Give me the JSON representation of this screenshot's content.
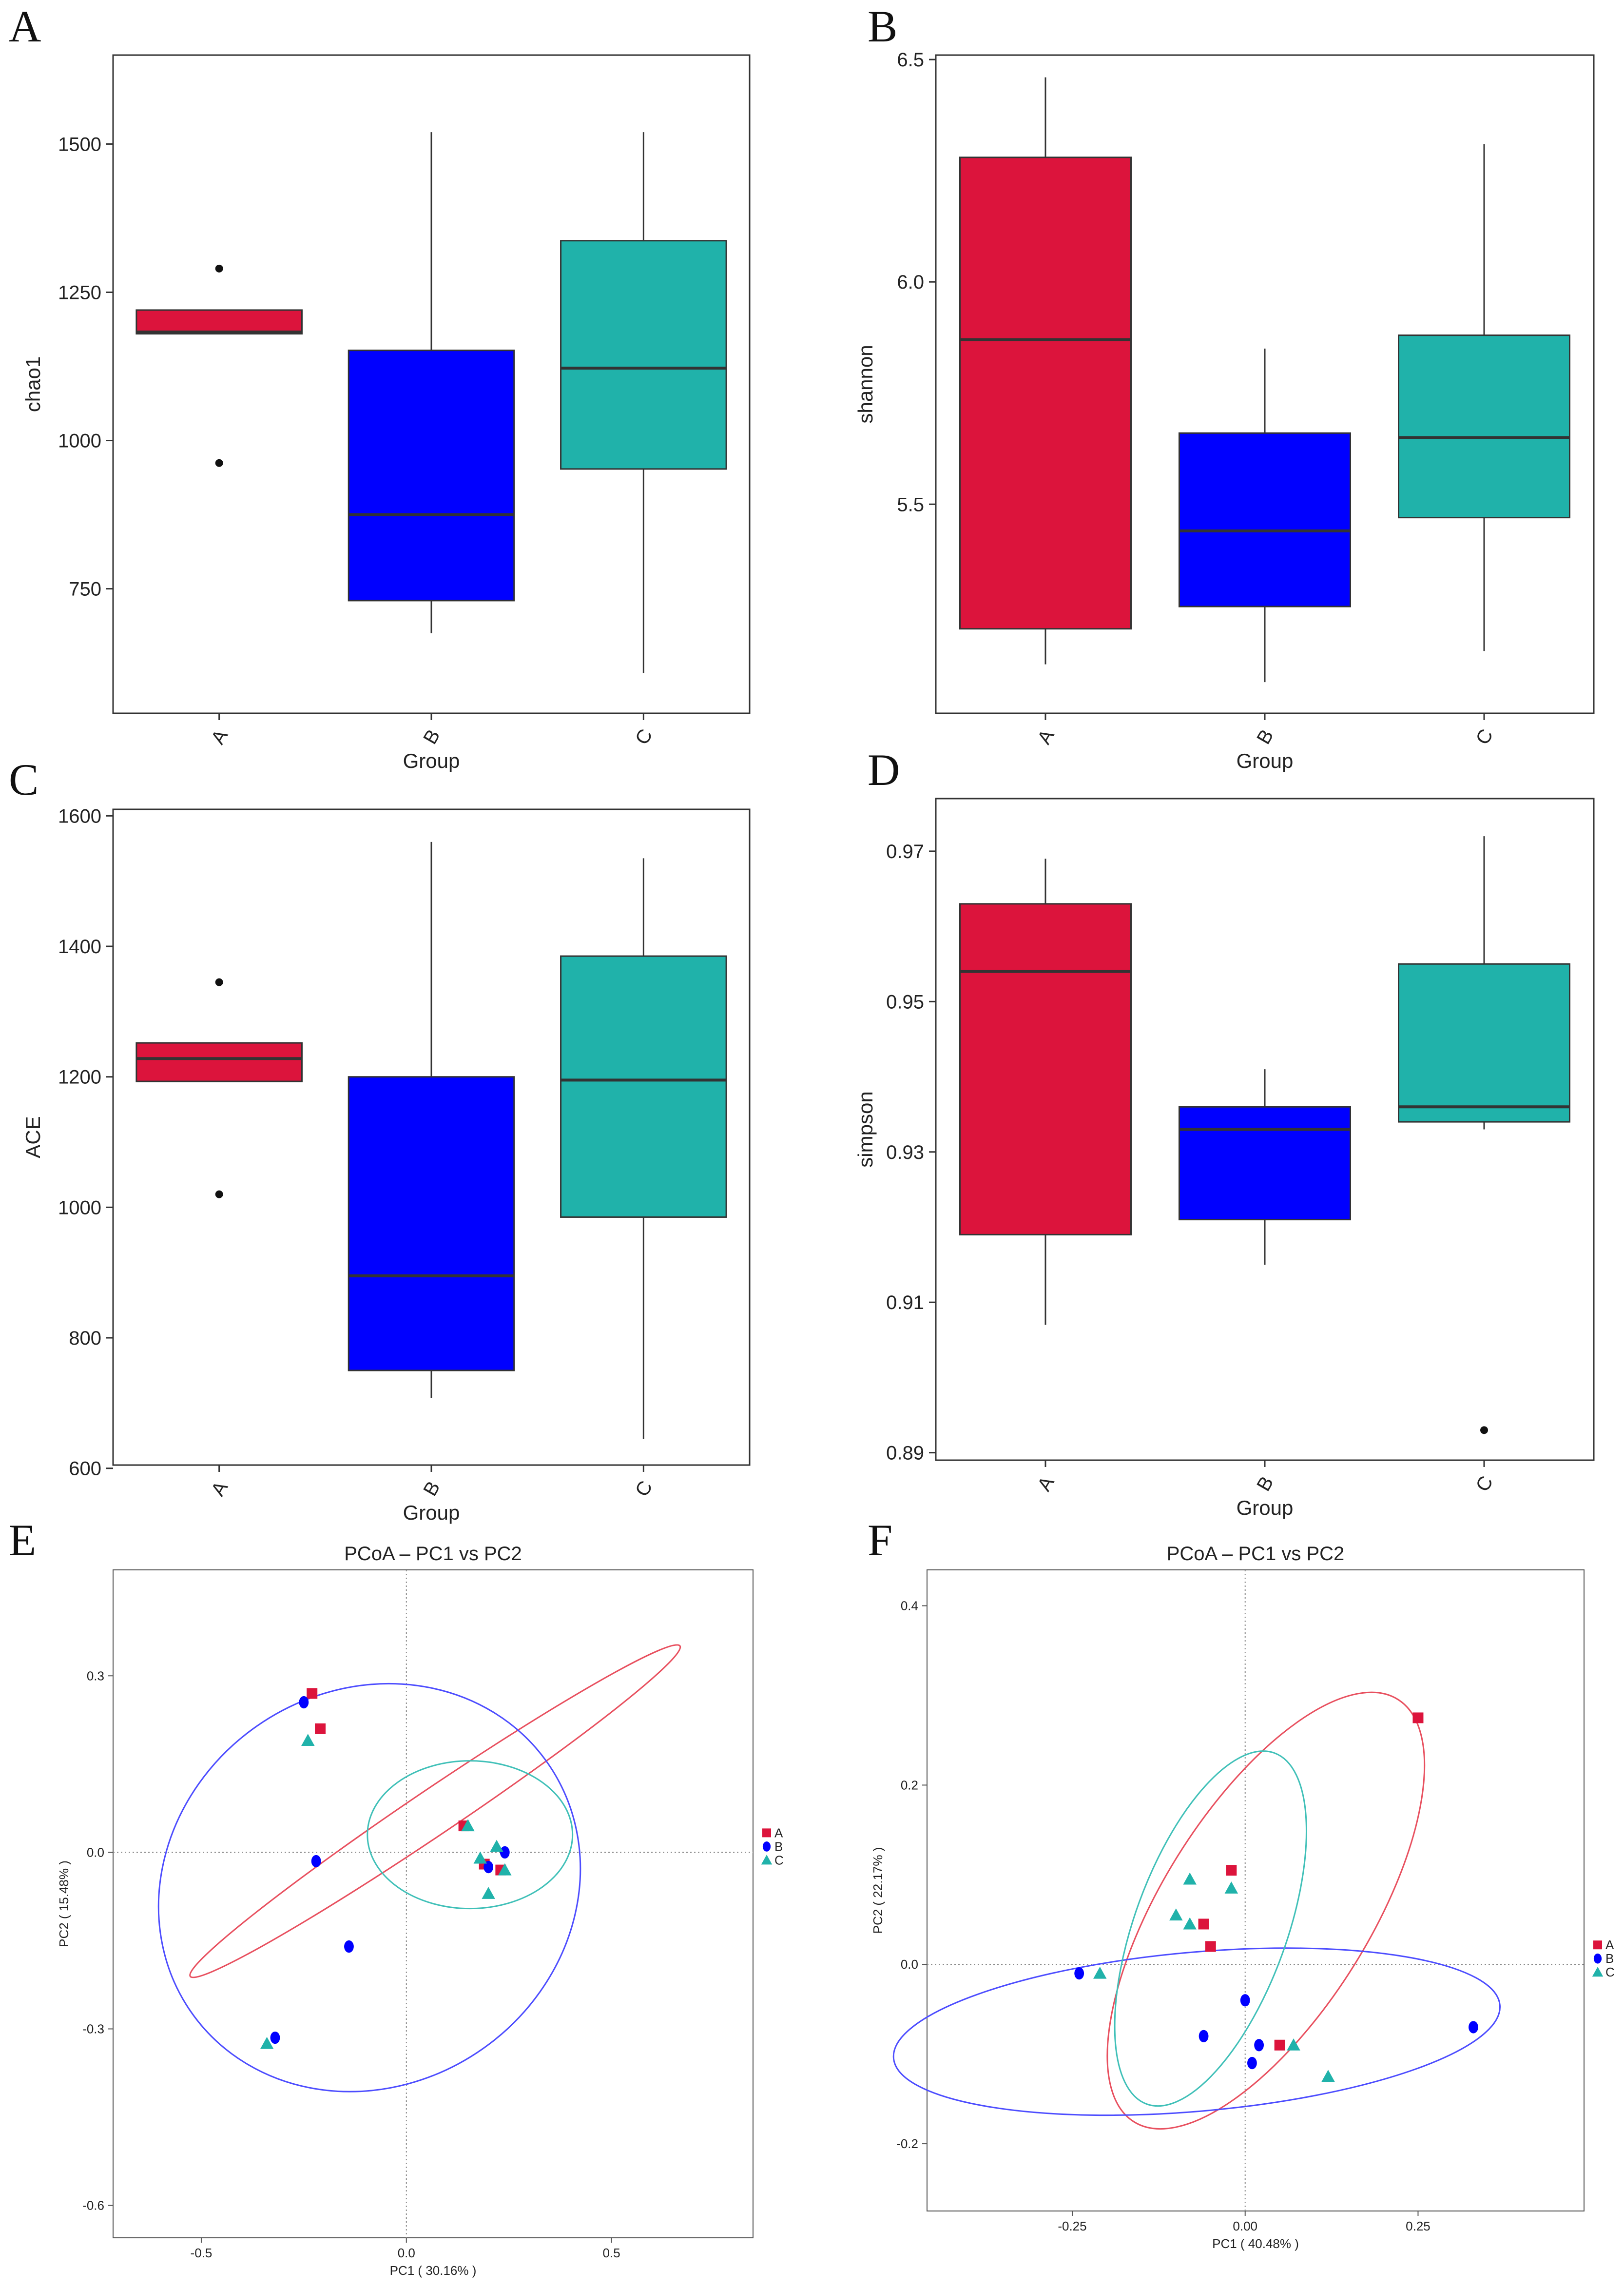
{
  "colors": {
    "A": "#dc143c",
    "B": "#0000ff",
    "C": "#20b2aa",
    "ellipse_A": "#e8505f",
    "ellipse_B": "#4d4dff",
    "ellipse_C": "#40c0b8",
    "median": "#333333"
  },
  "chart_data": [
    {
      "panel": "A",
      "type": "box",
      "xlabel": "Group",
      "ylabel": "chao1",
      "ylim": [
        540,
        1650
      ],
      "yticks": [
        750,
        1000,
        1250,
        1500
      ],
      "ytick_labels": [
        "750",
        "1000",
        "1250",
        "1500"
      ],
      "categories": [
        "A",
        "B",
        "C"
      ],
      "boxes": [
        {
          "group": "A",
          "q1": 1180,
          "median": 1183,
          "q3": 1220,
          "whisker_low": 1180,
          "whisker_high": 1220,
          "outliers": [
            1290,
            962
          ]
        },
        {
          "group": "B",
          "q1": 730,
          "median": 875,
          "q3": 1152,
          "whisker_low": 675,
          "whisker_high": 1520,
          "outliers": []
        },
        {
          "group": "C",
          "q1": 952,
          "median": 1122,
          "q3": 1337,
          "whisker_low": 608,
          "whisker_high": 1520,
          "outliers": []
        }
      ]
    },
    {
      "panel": "B",
      "type": "box",
      "xlabel": "Group",
      "ylabel": "shannon",
      "ylim": [
        5.03,
        6.51
      ],
      "yticks": [
        5.5,
        6.0,
        6.5
      ],
      "ytick_labels": [
        "5.5",
        "6.0",
        "6.5"
      ],
      "categories": [
        "A",
        "B",
        "C"
      ],
      "boxes": [
        {
          "group": "A",
          "q1": 5.22,
          "median": 5.87,
          "q3": 6.28,
          "whisker_low": 5.14,
          "whisker_high": 6.46,
          "outliers": []
        },
        {
          "group": "B",
          "q1": 5.27,
          "median": 5.44,
          "q3": 5.66,
          "whisker_low": 5.1,
          "whisker_high": 5.85,
          "outliers": []
        },
        {
          "group": "C",
          "q1": 5.47,
          "median": 5.65,
          "q3": 5.88,
          "whisker_low": 5.17,
          "whisker_high": 6.31,
          "outliers": []
        }
      ]
    },
    {
      "panel": "C",
      "type": "box",
      "xlabel": "Group",
      "ylabel": "ACE",
      "ylim": [
        605,
        1610
      ],
      "yticks": [
        600,
        800,
        1000,
        1200,
        1400,
        1600
      ],
      "ytick_labels": [
        "600",
        "800",
        "1000",
        "1200",
        "1400",
        "1600"
      ],
      "categories": [
        "A",
        "B",
        "C"
      ],
      "boxes": [
        {
          "group": "A",
          "q1": 1193,
          "median": 1228,
          "q3": 1252,
          "whisker_low": 1193,
          "whisker_high": 1252,
          "outliers": [
            1345,
            1020
          ]
        },
        {
          "group": "B",
          "q1": 750,
          "median": 895,
          "q3": 1200,
          "whisker_low": 708,
          "whisker_high": 1560,
          "outliers": []
        },
        {
          "group": "C",
          "q1": 985,
          "median": 1195,
          "q3": 1385,
          "whisker_low": 645,
          "whisker_high": 1535,
          "outliers": []
        }
      ]
    },
    {
      "panel": "D",
      "type": "box",
      "xlabel": "Group",
      "ylabel": "simpson",
      "ylim": [
        0.889,
        0.977
      ],
      "yticks": [
        0.89,
        0.91,
        0.93,
        0.95,
        0.97
      ],
      "ytick_labels": [
        "0.89",
        "0.91",
        "0.93",
        "0.95",
        "0.97"
      ],
      "categories": [
        "A",
        "B",
        "C"
      ],
      "boxes": [
        {
          "group": "A",
          "q1": 0.919,
          "median": 0.954,
          "q3": 0.963,
          "whisker_low": 0.907,
          "whisker_high": 0.969,
          "outliers": []
        },
        {
          "group": "B",
          "q1": 0.921,
          "median": 0.933,
          "q3": 0.936,
          "whisker_low": 0.915,
          "whisker_high": 0.941,
          "outliers": []
        },
        {
          "group": "C",
          "q1": 0.934,
          "median": 0.936,
          "q3": 0.955,
          "whisker_low": 0.933,
          "whisker_high": 0.972,
          "outliers": [
            0.893
          ]
        }
      ]
    },
    {
      "panel": "E",
      "type": "scatter",
      "title": "PCoA – PC1 vs PC2",
      "xlabel": "PC1 ( 30.16% )",
      "ylabel": "PC2 ( 15.48% )",
      "xlim": [
        -0.715,
        0.845
      ],
      "ylim": [
        -0.655,
        0.48
      ],
      "xticks": [
        -0.5,
        0.0,
        0.5
      ],
      "xtick_labels": [
        "-0.5",
        "0.0",
        "0.5"
      ],
      "yticks": [
        -0.6,
        -0.3,
        0.0,
        0.3
      ],
      "ytick_labels": [
        "-0.6",
        "-0.3",
        "0.0",
        "0.3"
      ],
      "legend": [
        "A",
        "B",
        "C"
      ],
      "ellipses": [
        {
          "group": "A",
          "cx": 0.07,
          "cy": 0.07,
          "rx": 0.72,
          "ry": 0.055,
          "angle_deg": -34
        },
        {
          "group": "B",
          "cx": -0.09,
          "cy": -0.06,
          "rx": 0.53,
          "ry": 0.48,
          "angle_deg": -35
        },
        {
          "group": "C",
          "cx": 0.155,
          "cy": 0.03,
          "rx": 0.25,
          "ry": 0.18,
          "angle_deg": 0
        }
      ],
      "points": {
        "A": [
          [
            -0.23,
            0.27
          ],
          [
            -0.21,
            0.21
          ],
          [
            0.14,
            0.045
          ],
          [
            0.19,
            -0.02
          ],
          [
            0.23,
            -0.03
          ]
        ],
        "B": [
          [
            -0.25,
            0.255
          ],
          [
            -0.22,
            -0.015
          ],
          [
            -0.14,
            -0.16
          ],
          [
            -0.32,
            -0.315
          ],
          [
            0.2,
            -0.025
          ],
          [
            0.24,
            0.0
          ]
        ],
        "C": [
          [
            -0.24,
            0.19
          ],
          [
            0.15,
            0.045
          ],
          [
            0.18,
            -0.01
          ],
          [
            0.2,
            -0.07
          ],
          [
            0.22,
            0.01
          ],
          [
            0.24,
            -0.03
          ],
          [
            -0.34,
            -0.325
          ]
        ]
      }
    },
    {
      "panel": "F",
      "type": "scatter",
      "title": "PCoA – PC1 vs PC2",
      "xlabel": "PC1 ( 40.48% )",
      "ylabel": "PC2 ( 22.17% )",
      "xlim": [
        -0.46,
        0.49
      ],
      "ylim": [
        -0.275,
        0.44
      ],
      "xticks": [
        -0.25,
        0.0,
        0.25
      ],
      "xtick_labels": [
        "-0.25",
        "0.00",
        "0.25"
      ],
      "yticks": [
        -0.2,
        0.0,
        0.2,
        0.4
      ],
      "ytick_labels": [
        "-0.2",
        "0.0",
        "0.2",
        "0.4"
      ],
      "legend": [
        "A",
        "B",
        "C"
      ],
      "ellipses": [
        {
          "group": "A",
          "cx": 0.03,
          "cy": 0.06,
          "rx": 0.36,
          "ry": 0.15,
          "angle_deg": -58
        },
        {
          "group": "B",
          "cx": -0.07,
          "cy": -0.075,
          "rx": 0.44,
          "ry": 0.115,
          "angle_deg": -5
        },
        {
          "group": "C",
          "cx": -0.05,
          "cy": 0.04,
          "rx": 0.27,
          "ry": 0.11,
          "angle_deg": -70
        }
      ],
      "points": {
        "A": [
          [
            0.25,
            0.275
          ],
          [
            -0.02,
            0.105
          ],
          [
            -0.06,
            0.045
          ],
          [
            -0.05,
            0.02
          ],
          [
            0.05,
            -0.09
          ]
        ],
        "B": [
          [
            -0.24,
            -0.01
          ],
          [
            -0.06,
            -0.08
          ],
          [
            0.0,
            -0.04
          ],
          [
            0.02,
            -0.09
          ],
          [
            0.01,
            -0.11
          ],
          [
            0.33,
            -0.07
          ]
        ],
        "C": [
          [
            -0.21,
            -0.01
          ],
          [
            -0.08,
            0.095
          ],
          [
            -0.02,
            0.085
          ],
          [
            -0.1,
            0.055
          ],
          [
            -0.08,
            0.045
          ],
          [
            0.07,
            -0.09
          ],
          [
            0.12,
            -0.125
          ]
        ]
      }
    }
  ]
}
